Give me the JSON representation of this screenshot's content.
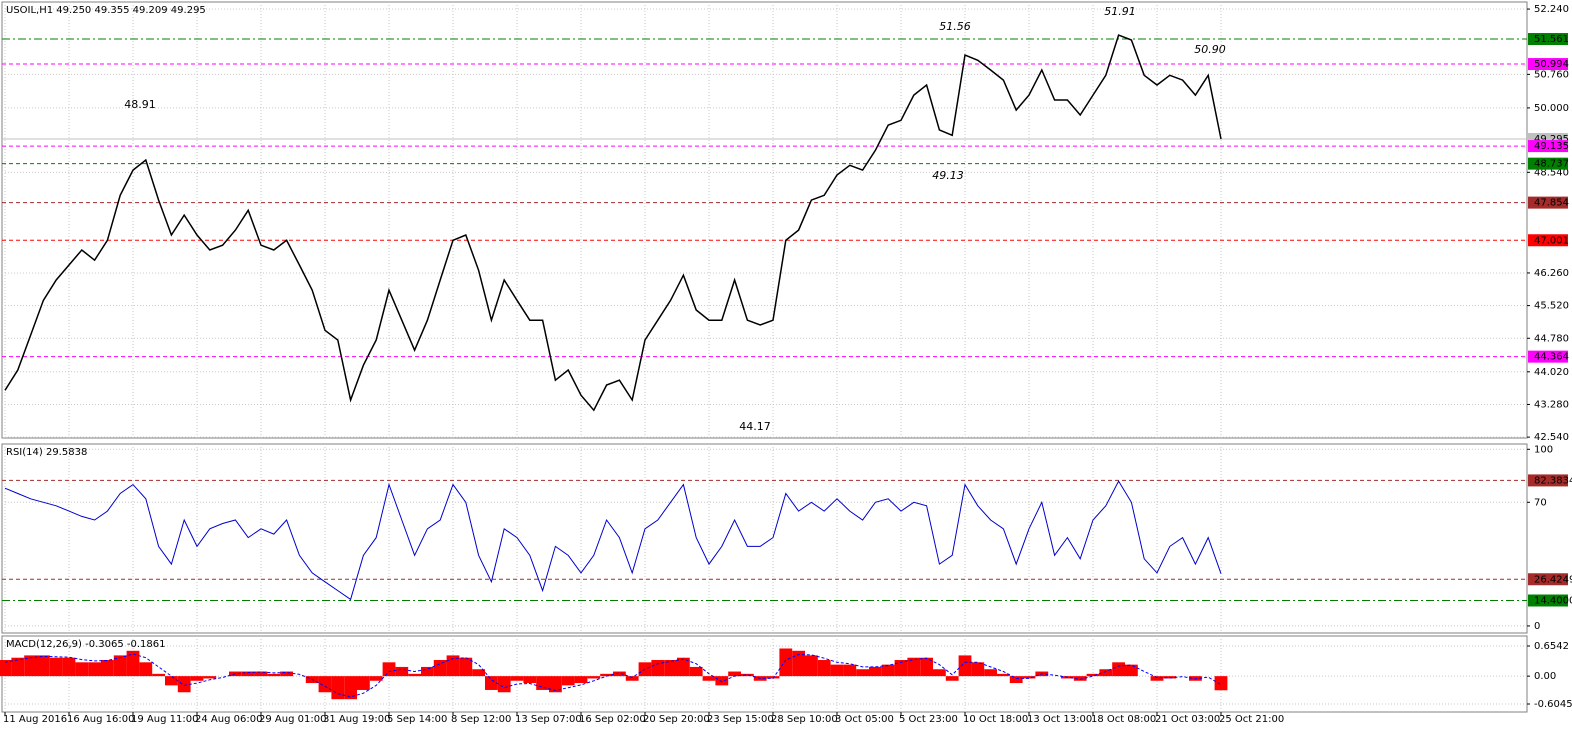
{
  "chart_data": [
    {
      "type": "line",
      "title": "USOIL,H1  49.250 49.355 49.209 49.295",
      "categories": [
        "11 Aug 2016",
        null,
        null,
        null,
        null,
        "16 Aug 16:00",
        null,
        null,
        null,
        null,
        "19 Aug 11:00",
        null,
        null,
        null,
        null,
        "24 Aug 06:00",
        null,
        null,
        null,
        null,
        "29 Aug 01:00",
        null,
        null,
        null,
        null,
        "31 Aug 19:00",
        null,
        null,
        null,
        null,
        "5 Sep 14:00",
        null,
        null,
        null,
        null,
        "8 Sep 12:00",
        null,
        null,
        null,
        null,
        "13 Sep 07:00",
        null,
        null,
        null,
        null,
        "16 Sep 02:00",
        null,
        null,
        null,
        null,
        "20 Sep 20:00",
        null,
        null,
        null,
        null,
        "23 Sep 15:00",
        null,
        null,
        null,
        null,
        "28 Sep 10:00",
        null,
        null,
        null,
        null,
        "3 Oct 05:00",
        null,
        null,
        null,
        null,
        "5 Oct 23:00",
        null,
        null,
        null,
        null,
        "10 Oct 18:00",
        null,
        null,
        null,
        null,
        "13 Oct 13:00",
        null,
        null,
        null,
        null,
        "18 Oct 08:00",
        null,
        null,
        null,
        null,
        "21 Oct 03:00",
        null,
        null,
        null,
        null,
        "25 Oct 21:00"
      ],
      "series": [
        {
          "color": "#000000",
          "values": [
            43.6,
            44.06,
            44.85,
            45.64,
            46.1,
            46.44,
            46.78,
            46.55,
            47.0,
            48.02,
            48.59,
            48.82,
            47.91,
            47.12,
            47.57,
            47.12,
            46.78,
            46.89,
            47.23,
            47.68,
            46.89,
            46.78,
            47.0,
            46.44,
            45.87,
            44.96,
            44.74,
            43.38,
            44.17,
            44.74,
            45.87,
            45.19,
            44.51,
            45.19,
            46.1,
            47.0,
            47.12,
            46.32,
            45.19,
            46.1,
            45.64,
            45.19,
            45.19,
            43.83,
            44.06,
            43.49,
            43.15,
            43.72,
            43.83,
            43.38,
            44.74,
            45.19,
            45.64,
            46.21,
            45.42,
            45.19,
            45.19,
            46.1,
            45.19,
            45.08,
            45.19,
            47.0,
            47.23,
            47.91,
            48.02,
            48.48,
            48.7,
            48.59,
            49.04,
            49.61,
            49.72,
            50.29,
            50.52,
            49.5,
            49.38,
            51.2,
            51.08,
            50.86,
            50.63,
            49.95,
            50.29,
            50.86,
            50.18,
            50.18,
            49.84,
            50.29,
            50.74,
            51.65,
            51.54,
            50.74,
            50.52,
            50.74,
            50.63,
            50.29,
            50.74,
            49.295
          ]
        }
      ],
      "ylim": [
        42.52,
        52.4
      ],
      "yticks": [
        {
          "value": 42.54,
          "label": "42.540"
        },
        {
          "value": 43.28,
          "label": "43.280"
        },
        {
          "value": 44.02,
          "label": "44.020"
        },
        {
          "value": 44.78,
          "label": "44.780"
        },
        {
          "value": 45.52,
          "label": "45.520"
        },
        {
          "value": 46.26,
          "label": "46.260"
        },
        {
          "value": 48.54,
          "label": "48.540"
        },
        {
          "value": 50.0,
          "label": "50.000"
        },
        {
          "value": 50.76,
          "label": "50.760"
        },
        {
          "value": 52.24,
          "label": "52.240"
        }
      ],
      "grid": true,
      "levels": [
        {
          "value": 51.561,
          "label": "51.561",
          "color": "#008000",
          "style": "dash-dot"
        },
        {
          "value": 50.994,
          "label": "50.994",
          "color": "#ff00ff",
          "style": "dashed"
        },
        {
          "value": 49.295,
          "label": "49.295",
          "color": "#c0c0c0",
          "style": "solid"
        },
        {
          "value": 49.135,
          "label": "49.135",
          "color": "#ff00ff",
          "style": "dashed"
        },
        {
          "value": 48.737,
          "label": "48.737",
          "color": "#008000",
          "style": "dashed"
        },
        {
          "value": 47.854,
          "label": "47.854",
          "color": "#a52a2a",
          "style": "dashed"
        },
        {
          "value": 47.001,
          "label": "47.001",
          "color": "#ff0000",
          "style": "dashed"
        },
        {
          "value": 44.364,
          "label": "44.364",
          "color": "#ff00ff",
          "style": "dashed"
        }
      ],
      "annotations": [
        {
          "text": "48.91",
          "color": "#a52a2a"
        },
        {
          "text": "51.56",
          "color": "#9932cc"
        },
        {
          "text": "51.91",
          "color": "#ff0000"
        },
        {
          "text": "50.90",
          "color": "#4169e1"
        },
        {
          "text": "49.13",
          "color": "#9932cc"
        },
        {
          "text": "44.17",
          "color": "#a52a2a"
        }
      ]
    },
    {
      "type": "line",
      "title": "RSI(14) 29.5838",
      "series": [
        {
          "color": "#0000cd",
          "values": [
            78,
            75,
            72,
            70,
            68,
            65,
            62,
            60,
            65,
            75,
            80,
            72,
            45,
            35,
            60,
            45,
            55,
            58,
            60,
            50,
            55,
            52,
            60,
            40,
            30,
            25,
            20,
            15,
            40,
            50,
            80,
            60,
            40,
            55,
            60,
            80,
            70,
            40,
            25,
            55,
            50,
            40,
            20,
            45,
            40,
            30,
            40,
            60,
            50,
            30,
            55,
            60,
            70,
            80,
            50,
            35,
            45,
            60,
            45,
            45,
            50,
            75,
            65,
            70,
            65,
            72,
            65,
            60,
            70,
            72,
            65,
            70,
            68,
            35,
            40,
            80,
            68,
            60,
            55,
            35,
            55,
            70,
            40,
            50,
            38,
            60,
            68,
            82,
            70,
            38,
            30,
            45,
            50,
            35,
            50,
            29.58
          ]
        }
      ],
      "ylim": [
        -4,
        103
      ],
      "yticks": [
        0,
        70,
        100
      ],
      "grid": true,
      "levels": [
        {
          "value": 82.3834,
          "label": "82.3834",
          "color": "#a52a2a",
          "style": "dashed"
        },
        {
          "value": 26.4249,
          "label": "26.4249",
          "color": "#a52a2a",
          "style": "dashed"
        },
        {
          "value": 14.4,
          "label": "14.4000",
          "color": "#008000",
          "style": "dash-dot"
        }
      ]
    },
    {
      "type": "bar",
      "title": "MACD(12,26,9) -0.3065 -0.1861",
      "series": [
        {
          "color": "#ff0000",
          "values": [
            0.35,
            0.4,
            0.45,
            0.45,
            0.4,
            0.4,
            0.3,
            0.3,
            0.35,
            0.45,
            0.55,
            0.3,
            0.05,
            -0.2,
            -0.35,
            -0.1,
            -0.05,
            0.0,
            0.1,
            0.1,
            0.1,
            0.05,
            0.1,
            0.0,
            -0.15,
            -0.35,
            -0.5,
            -0.5,
            -0.3,
            -0.1,
            0.3,
            0.2,
            0.05,
            0.2,
            0.35,
            0.45,
            0.4,
            0.15,
            -0.3,
            -0.35,
            -0.1,
            -0.15,
            -0.3,
            -0.35,
            -0.2,
            -0.15,
            -0.05,
            0.05,
            0.1,
            -0.1,
            0.3,
            0.35,
            0.35,
            0.4,
            0.2,
            -0.1,
            -0.2,
            0.1,
            0.05,
            -0.1,
            -0.05,
            0.6,
            0.55,
            0.45,
            0.35,
            0.25,
            0.25,
            0.15,
            0.2,
            0.25,
            0.35,
            0.4,
            0.4,
            0.15,
            -0.1,
            0.45,
            0.3,
            0.15,
            0.05,
            -0.15,
            -0.05,
            0.1,
            0.0,
            -0.05,
            -0.1,
            0.05,
            0.15,
            0.3,
            0.25,
            0.0,
            -0.1,
            -0.05,
            0.0,
            -0.1,
            0.0,
            -0.3065
          ]
        },
        {
          "color": "#0000ff",
          "type": "line",
          "values": [
            0.3,
            0.35,
            0.4,
            0.43,
            0.42,
            0.41,
            0.36,
            0.33,
            0.34,
            0.4,
            0.48,
            0.4,
            0.2,
            0.0,
            -0.2,
            -0.15,
            -0.08,
            -0.03,
            0.05,
            0.08,
            0.09,
            0.07,
            0.08,
            0.04,
            -0.07,
            -0.22,
            -0.38,
            -0.45,
            -0.37,
            -0.2,
            0.1,
            0.15,
            0.1,
            0.15,
            0.27,
            0.38,
            0.4,
            0.25,
            -0.08,
            -0.25,
            -0.17,
            -0.16,
            -0.24,
            -0.31,
            -0.25,
            -0.19,
            -0.1,
            0.0,
            0.07,
            -0.03,
            0.15,
            0.27,
            0.32,
            0.37,
            0.27,
            0.05,
            -0.12,
            0.0,
            0.03,
            -0.05,
            -0.05,
            0.35,
            0.47,
            0.46,
            0.39,
            0.3,
            0.27,
            0.2,
            0.2,
            0.23,
            0.3,
            0.36,
            0.39,
            0.25,
            0.03,
            0.3,
            0.3,
            0.2,
            0.1,
            -0.05,
            -0.05,
            0.05,
            0.02,
            -0.02,
            -0.07,
            0.0,
            0.1,
            0.22,
            0.24,
            0.1,
            -0.03,
            -0.04,
            -0.01,
            -0.06,
            -0.02,
            -0.1861
          ]
        }
      ],
      "ylim": [
        -0.778,
        0.871
      ],
      "yticks": [
        {
          "value": -0.6045,
          "label": "-0.6045"
        },
        {
          "value": 0,
          "label": "0.00"
        },
        {
          "value": 0.6542,
          "label": "0.6542"
        }
      ],
      "grid": true
    }
  ]
}
